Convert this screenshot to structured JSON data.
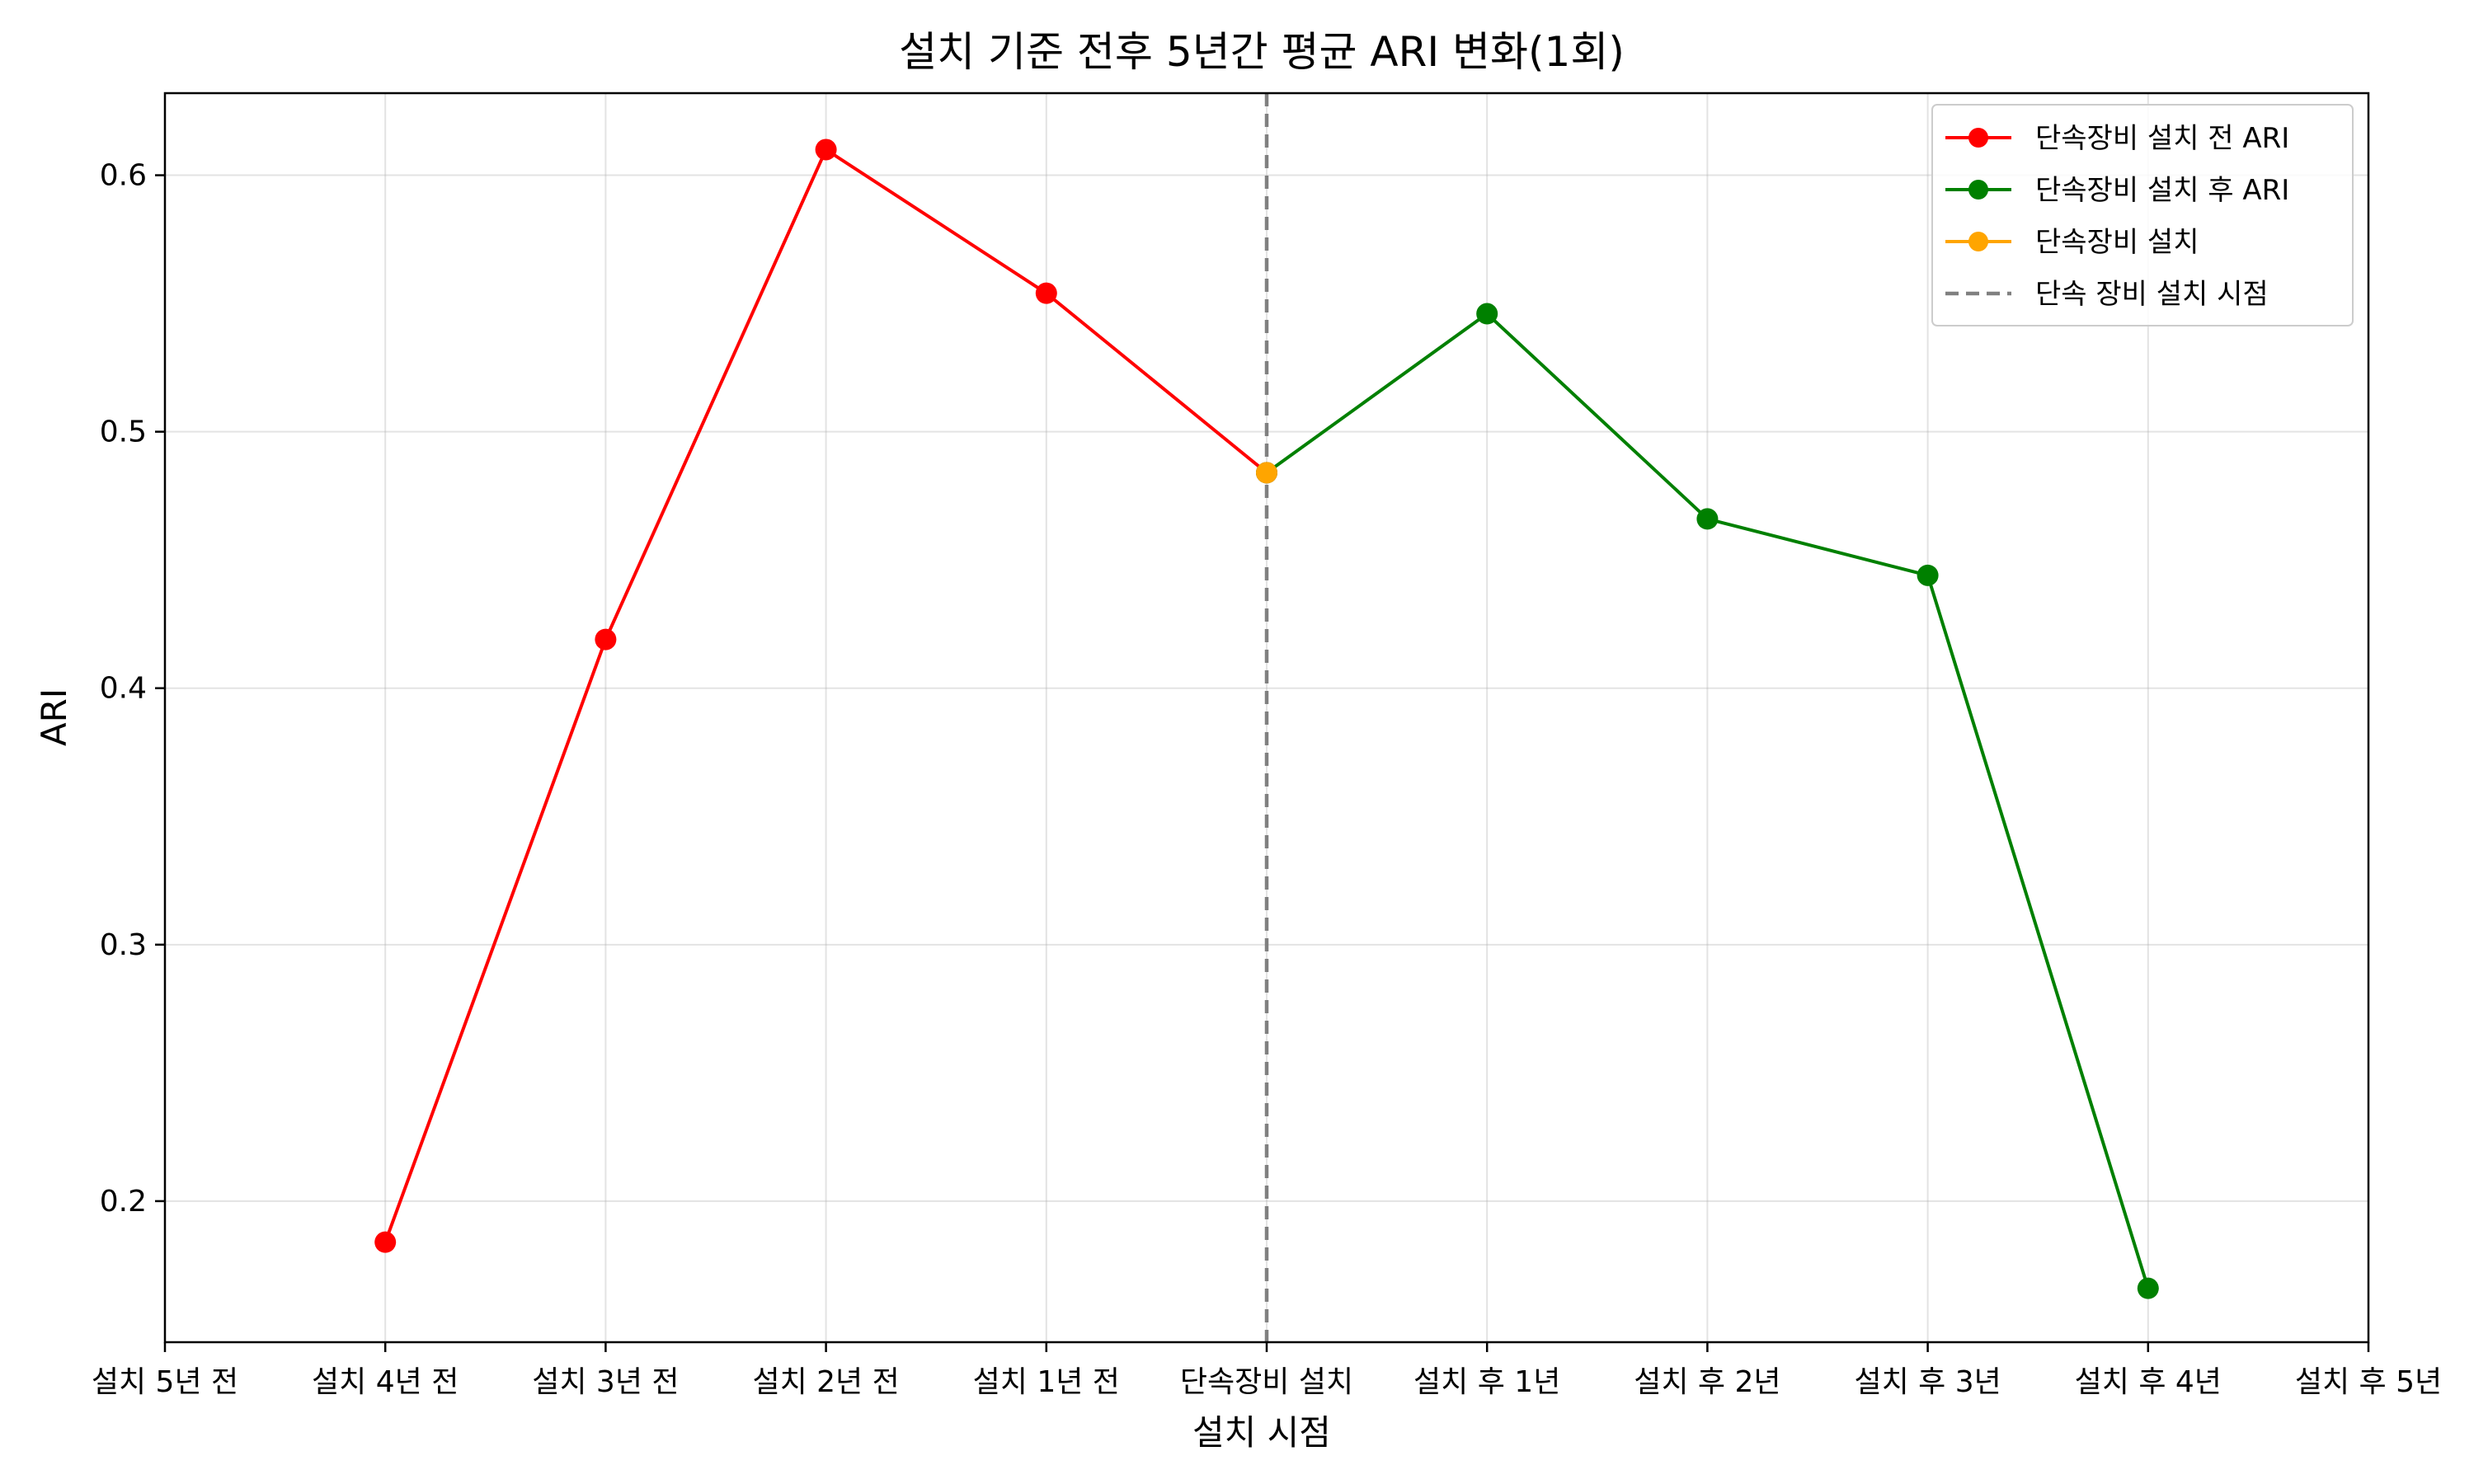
{
  "chart_data": {
    "type": "line",
    "title": "설치 기준 전후 5년간 평균 ARI 변화(1회)",
    "xlabel": "설치 시점",
    "ylabel": "ARI",
    "categories": [
      "설치 5년 전",
      "설치 4년 전",
      "설치 3년 전",
      "설치 2년 전",
      "설치 1년 전",
      "단속장비 설치",
      "설치 후 1년",
      "설치 후 2년",
      "설치 후 3년",
      "설치 후 4년",
      "설치 후 5년"
    ],
    "ylim": [
      0.145,
      0.632
    ],
    "yticks": [
      0.2,
      0.3,
      0.4,
      0.5,
      0.6
    ],
    "ytick_labels": [
      "0.2",
      "0.3",
      "0.4",
      "0.5",
      "0.6"
    ],
    "grid": true,
    "legend_position": "top-right",
    "series": [
      {
        "name": "단속장비 설치 전 ARI",
        "color": "#ff0000",
        "x": [
          "설치 4년 전",
          "설치 3년 전",
          "설치 2년 전",
          "설치 1년 전",
          "단속장비 설치"
        ],
        "values": [
          0.184,
          0.419,
          0.61,
          0.554,
          0.484
        ]
      },
      {
        "name": "단속장비 설치 후 ARI",
        "color": "#008000",
        "x": [
          "단속장비 설치",
          "설치 후 1년",
          "설치 후 2년",
          "설치 후 3년",
          "설치 후 4년"
        ],
        "values": [
          0.484,
          0.546,
          0.466,
          0.444,
          0.166
        ]
      },
      {
        "name": "단속장비 설치",
        "color": "#ffa500",
        "x": [
          "단속장비 설치"
        ],
        "values": [
          0.484
        ]
      }
    ],
    "vline": {
      "name": "단속 장비 설치 시점",
      "x": "단속장비 설치",
      "color": "#808080"
    }
  }
}
